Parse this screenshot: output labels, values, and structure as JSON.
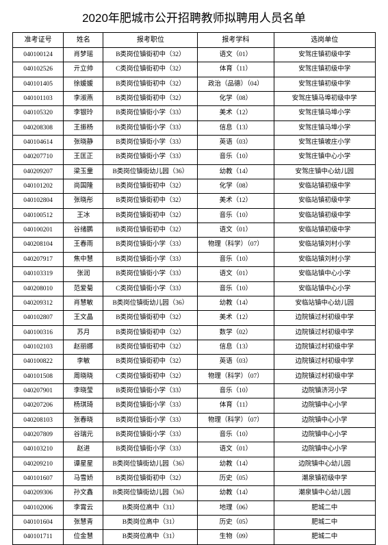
{
  "title": "2020年肥城市公开招聘教师拟聘用人员名单",
  "headers": [
    "准考证号",
    "姓名",
    "报考职位",
    "报考学科",
    "选岗单位"
  ],
  "rows": [
    [
      "040100124",
      "肖梦瑶",
      "B类岗位镇街初中（32）",
      "语文（01）",
      "安驾庄镇初级中学"
    ],
    [
      "040102526",
      "亓立帅",
      "C类岗位镇街初中（32）",
      "体育（11）",
      "安驾庄镇初级中学"
    ],
    [
      "040101405",
      "徐媛媛",
      "B类岗位镇街初中（32）",
      "政治（品德）（04）",
      "安驾庄镇初级中学"
    ],
    [
      "040101103",
      "李淑燕",
      "B类岗位镇街初中（32）",
      "化学（08）",
      "安驾庄镇马埠初级中学"
    ],
    [
      "040105320",
      "李银玲",
      "B类岗位镇街小学（33）",
      "美术（12）",
      "安驾庄镇马埠小学"
    ],
    [
      "040208308",
      "王振杨",
      "B类岗位镇街小学（33）",
      "信息（13）",
      "安驾庄镇马埠小学"
    ],
    [
      "040104614",
      "张晓静",
      "B类岗位镇街小学（33）",
      "英语（03）",
      "安驾庄镇坡庄小学"
    ],
    [
      "040207710",
      "王匡正",
      "B类岗位镇街小学（33）",
      "音乐（10）",
      "安驾庄镇中心小学"
    ],
    [
      "040209207",
      "梁玉童",
      "B类岗位镇街幼儿园（36）",
      "幼教（14）",
      "安驾庄镇中心幼儿园"
    ],
    [
      "040101202",
      "尚国隆",
      "B类岗位镇街初中（32）",
      "化学（08）",
      "安临站镇初级中学"
    ],
    [
      "040102804",
      "张晓彤",
      "B类岗位镇街初中（32）",
      "美术（12）",
      "安临站镇初级中学"
    ],
    [
      "040100512",
      "王冰",
      "B类岗位镇街初中（32）",
      "音乐（10）",
      "安临站镇初级中学"
    ],
    [
      "040100201",
      "谷绪鹏",
      "B类岗位镇街初中（32）",
      "语文（01）",
      "安临站镇初级中学"
    ],
    [
      "040208104",
      "王春雨",
      "B类岗位镇街小学（33）",
      "物理（科学）（07）",
      "安临站镇刘村小学"
    ],
    [
      "040207917",
      "焦中慧",
      "B类岗位镇街小学（33）",
      "音乐（10）",
      "安临站镇刘村小学"
    ],
    [
      "040103319",
      "张润",
      "B类岗位镇街小学（33）",
      "语文（01）",
      "安临站镇中心小学"
    ],
    [
      "040208010",
      "范爱菊",
      "C类岗位镇街小学（33）",
      "音乐（10）",
      "安临站镇中心小学"
    ],
    [
      "040209312",
      "肖慧敏",
      "B类岗位镇街幼儿园（36）",
      "幼教（14）",
      "安临站镇中心幼儿园"
    ],
    [
      "040102807",
      "王文晶",
      "B类岗位镇街初中（32）",
      "美术（12）",
      "边院镇过村初级中学"
    ],
    [
      "040100316",
      "苏月",
      "B类岗位镇街初中（32）",
      "数学（02）",
      "边院镇过村初级中学"
    ],
    [
      "040102103",
      "赵丽娜",
      "B类岗位镇街初中（32）",
      "信息（13）",
      "边院镇过村初级中学"
    ],
    [
      "040100822",
      "李敏",
      "B类岗位镇街初中（32）",
      "英语（03）",
      "边院镇过村初级中学"
    ],
    [
      "040101508",
      "周晓晓",
      "C类岗位镇街初中（32）",
      "物理（科学）（07）",
      "边院镇过村初级中学"
    ],
    [
      "040207901",
      "李晓莹",
      "B类岗位镇街小学（33）",
      "音乐（10）",
      "边院镇济河小学"
    ],
    [
      "040207206",
      "杨琪琦",
      "B类岗位镇街小学（33）",
      "体育（11）",
      "边院镇中心小学"
    ],
    [
      "040208103",
      "张春晓",
      "B类岗位镇街小学（33）",
      "物理（科学）（07）",
      "边院镇中心小学"
    ],
    [
      "040207809",
      "谷瑞元",
      "B类岗位镇街小学（33）",
      "音乐（10）",
      "边院镇中心小学"
    ],
    [
      "040103210",
      "赵进",
      "B类岗位镇街小学（33）",
      "语文（01）",
      "边院镇中心小学"
    ],
    [
      "040209210",
      "谭星星",
      "B类岗位镇街幼儿园（36）",
      "幼教（14）",
      "边院镇中心幼儿园"
    ],
    [
      "040101607",
      "马雪娇",
      "B类岗位镇街初中（32）",
      "历史（05）",
      "潮泉镇初级中学"
    ],
    [
      "040209306",
      "孙文鑫",
      "B类岗位镇街幼儿园（36）",
      "幼教（14）",
      "潮泉镇中心幼儿园"
    ],
    [
      "040102006",
      "李霄云",
      "B类岗位高中（31）",
      "地理（06）",
      "肥城二中"
    ],
    [
      "040101604",
      "张慧青",
      "B类岗位高中（31）",
      "历史（05）",
      "肥城二中"
    ],
    [
      "040101711",
      "位金慧",
      "B类岗位高中（31）",
      "生物（09）",
      "肥城二中"
    ]
  ]
}
